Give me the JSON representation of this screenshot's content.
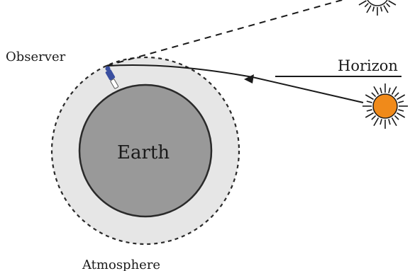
{
  "labels": {
    "observer": "Observer",
    "horizon": "Horizon",
    "earth": "Earth",
    "atmosphere": "Atmosphere"
  },
  "colors": {
    "atmosphere_fill": "#e6e6e6",
    "earth_fill": "#999999",
    "earth_stroke": "#2a2a2a",
    "sun_fill": "#f08a1a",
    "line": "#1a1a1a"
  }
}
